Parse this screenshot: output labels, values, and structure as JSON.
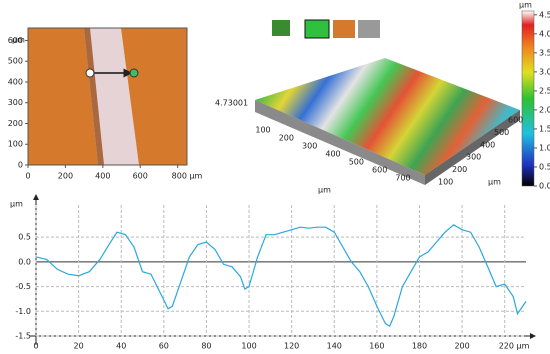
{
  "chart_data": [
    {
      "type": "image",
      "y_label": "µm",
      "xlim": [
        0,
        850
      ],
      "ylim": [
        0,
        660
      ],
      "xticks": [
        0,
        200,
        400,
        600,
        {
          "value": 800,
          "label": "800 µm"
        }
      ],
      "yticks": [
        0,
        100,
        200,
        300,
        400,
        500,
        600
      ]
    },
    {
      "type": "surface",
      "z_label": "4.73001",
      "xticks": [
        100,
        200,
        300,
        400,
        500,
        600,
        700
      ],
      "x_label": "µm",
      "yticks": [
        100,
        200,
        300,
        400,
        500,
        600
      ],
      "y_label": "µm"
    },
    {
      "type": "colorbar",
      "y_label": "µm",
      "ylim": [
        0,
        4.6
      ],
      "yticks": [
        {
          "value": 0,
          "label": "0.0"
        },
        0.5,
        {
          "value": 1,
          "label": "1.0"
        },
        1.5,
        {
          "value": 2,
          "label": "2.0"
        },
        2.5,
        {
          "value": 3,
          "label": "3.0"
        },
        3.5,
        {
          "value": 4,
          "label": "4.0"
        },
        4.5
      ]
    },
    {
      "type": "line",
      "y_label": "µm",
      "color": "#29a8e0",
      "x": [
        0,
        5,
        10,
        15,
        20,
        25,
        30,
        35,
        38,
        42,
        46,
        50,
        54,
        58,
        62,
        64,
        68,
        72,
        76,
        80,
        84,
        88,
        92,
        96,
        98,
        100,
        104,
        108,
        112,
        116,
        120,
        124,
        128,
        132,
        136,
        140,
        144,
        148,
        152,
        156,
        160,
        164,
        166,
        168,
        172,
        176,
        180,
        184,
        188,
        192,
        196,
        200,
        204,
        208,
        212,
        216,
        220,
        224,
        226,
        230
      ],
      "values": [
        0.1,
        0.05,
        -0.15,
        -0.25,
        -0.28,
        -0.2,
        0.05,
        0.4,
        0.6,
        0.55,
        0.3,
        -0.2,
        -0.25,
        -0.6,
        -0.95,
        -0.9,
        -0.4,
        0.1,
        0.35,
        0.4,
        0.25,
        -0.05,
        -0.1,
        -0.3,
        -0.55,
        -0.5,
        0.1,
        0.55,
        0.55,
        0.6,
        0.65,
        0.7,
        0.68,
        0.7,
        0.7,
        0.6,
        0.3,
        0,
        -0.2,
        -0.5,
        -0.9,
        -1.25,
        -1.3,
        -1.1,
        -0.5,
        -0.2,
        0.1,
        0.2,
        0.4,
        0.6,
        0.75,
        0.65,
        0.6,
        0.3,
        -0.1,
        -0.5,
        -0.45,
        -0.7,
        -1.05,
        -0.8
      ],
      "xlim": [
        0,
        230
      ],
      "ylim": [
        -1.5,
        1.15
      ],
      "xticks": [
        0,
        20,
        40,
        60,
        80,
        100,
        120,
        140,
        160,
        180,
        200,
        {
          "value": 220,
          "label": "220 µm"
        }
      ],
      "yticks": [
        -1.5,
        {
          "value": -1,
          "label": "-1.0"
        },
        -0.5,
        {
          "value": 0,
          "label": "0.0"
        },
        0.5
      ],
      "grid": true
    }
  ]
}
